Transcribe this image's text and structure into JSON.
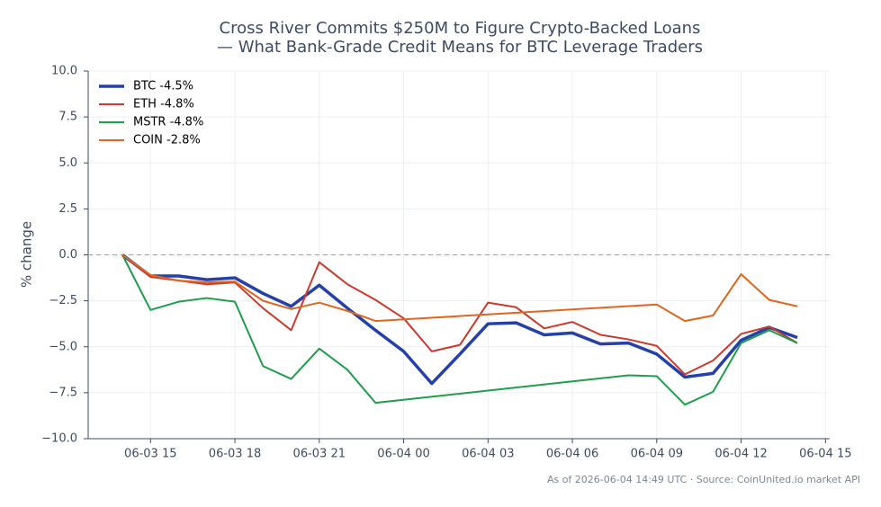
{
  "chart_data": {
    "type": "line",
    "title": "Cross River Commits $250M to Figure Crypto-Backed Loans",
    "subtitle": "— What Bank-Grade Credit Means for BTC Leverage Traders",
    "y_label": "% change",
    "footnote": "As of 2026-06-04 14:49 UTC · Source: CoinUnited.io market API",
    "xlim": [
      "06-03 12:47",
      "06-04 15:09"
    ],
    "xticks": [
      "06-03 15",
      "06-03 18",
      "06-03 21",
      "06-04 00",
      "06-04 03",
      "06-04 06",
      "06-04 09",
      "06-04 12",
      "06-04 15"
    ],
    "ylim": [
      -10,
      10
    ],
    "yticks": [
      {
        "value": -10,
        "label": "−10.0"
      },
      {
        "value": -7.5,
        "label": "−7.5"
      },
      {
        "value": -5,
        "label": "−5.0"
      },
      {
        "value": -2.5,
        "label": "−2.5"
      },
      {
        "value": 0,
        "label": "0.0"
      },
      {
        "value": 2.5,
        "label": "2.5"
      },
      {
        "value": 5,
        "label": "5.0"
      },
      {
        "value": 7.5,
        "label": "7.5"
      },
      {
        "value": 10,
        "label": "10.0"
      }
    ],
    "grid": true,
    "zero_line": true,
    "legend": "upper left",
    "series": [
      {
        "name": "BTC -4.5%",
        "color": "#2541a8",
        "width": 3.5,
        "x": [
          "06-03 14",
          "06-03 15",
          "06-03 16",
          "06-03 17",
          "06-03 18",
          "06-03 19",
          "06-03 20",
          "06-03 21",
          "06-03 22",
          "06-03 23",
          "06-04 00",
          "06-04 01",
          "06-04 02",
          "06-04 03",
          "06-04 04",
          "06-04 05",
          "06-04 06",
          "06-04 07",
          "06-04 08",
          "06-04 09",
          "06-04 10",
          "06-04 11",
          "06-04 12",
          "06-04 13",
          "06-04 14"
        ],
        "values": [
          0,
          -1.15,
          -1.15,
          -1.35,
          -1.25,
          -2.1,
          -2.8,
          -1.65,
          -2.9,
          -4.1,
          -5.25,
          -7.0,
          -5.4,
          -3.75,
          -3.7,
          -4.35,
          -4.25,
          -4.85,
          -4.8,
          -5.4,
          -6.65,
          -6.45,
          -4.65,
          -3.95,
          -4.5
        ]
      },
      {
        "name": "ETH -4.8%",
        "color": "#cc3a2e",
        "width": 2,
        "x": [
          "06-03 14",
          "06-03 15",
          "06-03 16",
          "06-03 17",
          "06-03 18",
          "06-03 19",
          "06-03 20",
          "06-03 21",
          "06-03 22",
          "06-03 23",
          "06-04 00",
          "06-04 01",
          "06-04 02",
          "06-04 03",
          "06-04 04",
          "06-04 05",
          "06-04 06",
          "06-04 07",
          "06-04 08",
          "06-04 09",
          "06-04 10",
          "06-04 11",
          "06-04 12",
          "06-04 13",
          "06-04 14"
        ],
        "values": [
          0,
          -1.2,
          -1.4,
          -1.6,
          -1.5,
          -2.9,
          -4.1,
          -0.4,
          -1.6,
          -2.45,
          -3.45,
          -5.25,
          -4.9,
          -2.6,
          -2.85,
          -4.0,
          -3.65,
          -4.35,
          -4.6,
          -4.95,
          -6.5,
          -5.75,
          -4.3,
          -3.9,
          -4.8
        ]
      },
      {
        "name": "MSTR -4.8%",
        "color": "#1e9e4a",
        "width": 2,
        "x": [
          "06-03 14",
          "06-03 15",
          "06-03 16",
          "06-03 17",
          "06-03 18",
          "06-03 19",
          "06-03 20",
          "06-03 21",
          "06-03 22",
          "06-03 23",
          "06-04 08",
          "06-04 09",
          "06-04 10",
          "06-04 11",
          "06-04 12",
          "06-04 13",
          "06-04 14"
        ],
        "values": [
          0,
          -3.0,
          -2.55,
          -2.35,
          -2.55,
          -6.05,
          -6.75,
          -5.1,
          -6.25,
          -8.05,
          -6.55,
          -6.6,
          -8.15,
          -7.45,
          -4.8,
          -4.1,
          -4.8
        ]
      },
      {
        "name": "COIN -2.8%",
        "color": "#e0661e",
        "width": 2,
        "x": [
          "06-03 14",
          "06-03 15",
          "06-03 16",
          "06-03 17",
          "06-03 18",
          "06-03 19",
          "06-03 20",
          "06-03 21",
          "06-03 22",
          "06-03 23",
          "06-04 09",
          "06-04 10",
          "06-04 11",
          "06-04 12",
          "06-04 13",
          "06-04 14"
        ],
        "values": [
          0,
          -1.1,
          -1.4,
          -1.5,
          -1.45,
          -2.5,
          -2.95,
          -2.6,
          -3.05,
          -3.6,
          -2.7,
          -3.6,
          -3.3,
          -1.05,
          -2.45,
          -2.8
        ]
      }
    ]
  }
}
